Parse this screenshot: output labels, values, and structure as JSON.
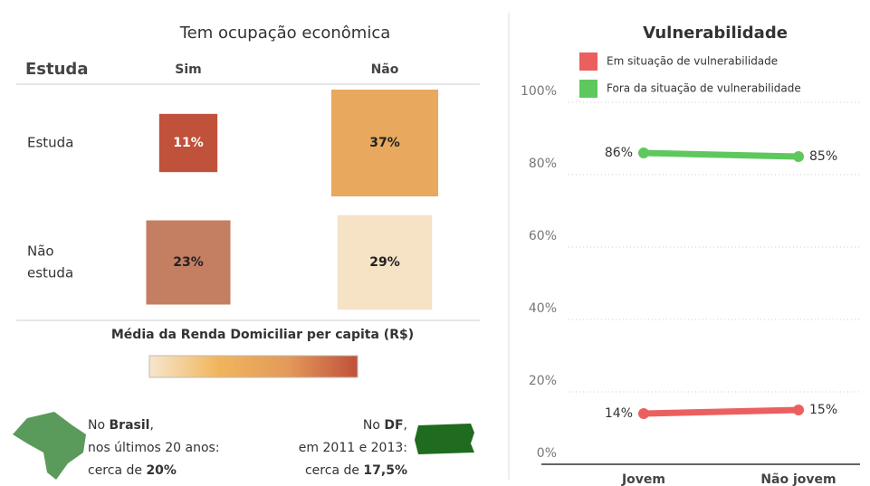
{
  "chart_data": [
    {
      "type": "square-matrix",
      "title": "Tem ocupação econômica",
      "row_header": "Estuda",
      "columns": [
        "Sim",
        "Não"
      ],
      "rows": [
        [
          "Não",
          "estuda"
        ]
      ],
      "row_labels": [
        [
          "Estuda"
        ],
        [
          "Não",
          "estuda"
        ]
      ],
      "values": [
        [
          11,
          37
        ],
        [
          23,
          29
        ]
      ],
      "value_labels": [
        [
          "11%",
          "37%"
        ],
        [
          "23%",
          "29%"
        ]
      ],
      "colors": [
        [
          "#c0513a",
          "#e8a95e"
        ],
        [
          "#c47e62",
          "#f6e2c4"
        ]
      ],
      "legend_title": "Média da Renda Domiciliar per capita (R$)",
      "legend_colors": [
        "#f7e6cc",
        "#f0b55c",
        "#e39a5a",
        "#c0513a"
      ]
    },
    {
      "type": "line",
      "title": "Vulnerabilidade",
      "categories": [
        "Jovem",
        "Não jovem"
      ],
      "series": [
        {
          "name": "Em situação de vulnerabilidade",
          "color": "#ec5f5f",
          "values": [
            14,
            15
          ],
          "value_labels": [
            "14%",
            "15%"
          ]
        },
        {
          "name": "Fora da situação de vulnerabilidade",
          "color": "#5ec85e",
          "values": [
            86,
            85
          ],
          "value_labels": [
            "86%",
            "85%"
          ]
        }
      ],
      "ylim": [
        0,
        100
      ],
      "yticks": [
        {
          "value": 0,
          "label": "0%"
        },
        {
          "value": 20,
          "label": "20%"
        },
        {
          "value": 40,
          "label": "40%"
        },
        {
          "value": 60,
          "label": "60%"
        },
        {
          "value": 80,
          "label": "80%"
        },
        {
          "value": 100,
          "label": "100%"
        }
      ],
      "grid": true,
      "legend": "top-left"
    }
  ],
  "notes": [
    [
      [
        {
          "text": "No "
        },
        {
          "text": "Brasil",
          "bold": true
        },
        {
          "text": ","
        }
      ],
      [
        {
          "text": "nos últimos 20 anos:"
        }
      ],
      [
        {
          "text": "cerca de "
        },
        {
          "text": "20%",
          "bold": true
        }
      ]
    ],
    [
      [
        {
          "text": "No "
        },
        {
          "text": "DF",
          "bold": true
        },
        {
          "text": ","
        }
      ],
      [
        {
          "text": "em 2011 e 2013:"
        }
      ],
      [
        {
          "text": "cerca de "
        },
        {
          "text": "17,5%",
          "bold": true
        }
      ]
    ]
  ]
}
